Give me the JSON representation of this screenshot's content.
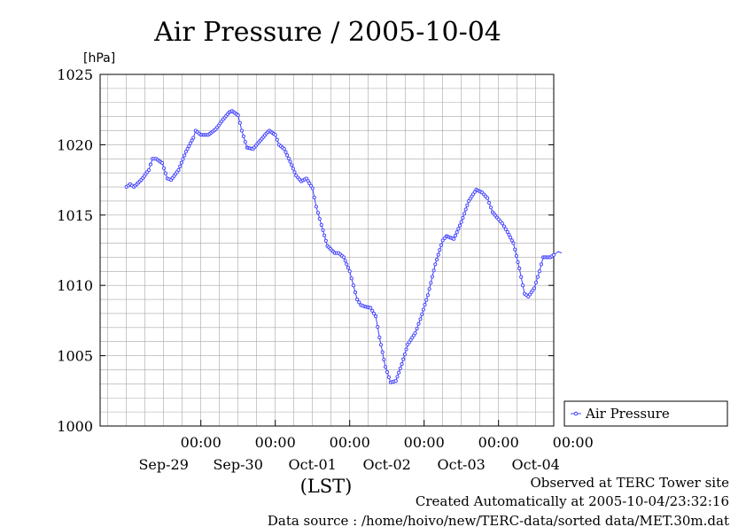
{
  "chart_data": {
    "type": "line",
    "title": "Air Pressure / 2005-10-04",
    "ylabel": "[hPa]",
    "xlabel": "(LST)",
    "ylim": [
      1000,
      1025
    ],
    "yticks": [
      1000,
      1005,
      1010,
      1015,
      1020,
      1025
    ],
    "xlim": [
      0,
      6
    ],
    "x_unit": "days since 2005-09-28 00:00 LST",
    "x_ticks": [
      {
        "x": 1,
        "time": "00:00",
        "date": "Sep-29"
      },
      {
        "x": 2,
        "time": "00:00",
        "date": "Sep-30"
      },
      {
        "x": 3,
        "time": "00:00",
        "date": "Oct-01"
      },
      {
        "x": 4,
        "time": "00:00",
        "date": "Oct-02"
      },
      {
        "x": 5,
        "time": "00:00",
        "date": "Oct-03"
      },
      {
        "x": 6,
        "time": "00:00",
        "date": "Oct-04"
      }
    ],
    "legend_position": "right-bottom",
    "series": [
      {
        "name": "Air Pressure",
        "color": "#4040ff",
        "marker": "circle-open",
        "points": [
          [
            0.0,
            1017.0
          ],
          [
            0.05,
            1017.2
          ],
          [
            0.1,
            1017.0
          ],
          [
            0.2,
            1017.5
          ],
          [
            0.3,
            1018.2
          ],
          [
            0.35,
            1019.0
          ],
          [
            0.4,
            1019.0
          ],
          [
            0.48,
            1018.7
          ],
          [
            0.55,
            1017.6
          ],
          [
            0.6,
            1017.5
          ],
          [
            0.7,
            1018.2
          ],
          [
            0.8,
            1019.5
          ],
          [
            0.9,
            1020.5
          ],
          [
            0.93,
            1021.0
          ],
          [
            1.0,
            1020.7
          ],
          [
            1.1,
            1020.7
          ],
          [
            1.2,
            1021.1
          ],
          [
            1.3,
            1021.8
          ],
          [
            1.38,
            1022.3
          ],
          [
            1.42,
            1022.4
          ],
          [
            1.5,
            1022.1
          ],
          [
            1.55,
            1021.0
          ],
          [
            1.62,
            1019.8
          ],
          [
            1.7,
            1019.7
          ],
          [
            1.8,
            1020.3
          ],
          [
            1.88,
            1020.8
          ],
          [
            1.92,
            1021.0
          ],
          [
            2.0,
            1020.7
          ],
          [
            2.05,
            1020.0
          ],
          [
            2.12,
            1019.7
          ],
          [
            2.2,
            1018.8
          ],
          [
            2.28,
            1017.8
          ],
          [
            2.35,
            1017.4
          ],
          [
            2.42,
            1017.6
          ],
          [
            2.5,
            1016.9
          ],
          [
            2.55,
            1015.6
          ],
          [
            2.62,
            1014.3
          ],
          [
            2.7,
            1012.8
          ],
          [
            2.8,
            1012.3
          ],
          [
            2.85,
            1012.3
          ],
          [
            2.92,
            1012.0
          ],
          [
            3.0,
            1011.0
          ],
          [
            3.05,
            1010.0
          ],
          [
            3.1,
            1009.0
          ],
          [
            3.15,
            1008.6
          ],
          [
            3.2,
            1008.5
          ],
          [
            3.28,
            1008.4
          ],
          [
            3.35,
            1007.8
          ],
          [
            3.4,
            1006.3
          ],
          [
            3.48,
            1004.2
          ],
          [
            3.55,
            1003.1
          ],
          [
            3.62,
            1003.2
          ],
          [
            3.7,
            1004.4
          ],
          [
            3.78,
            1005.8
          ],
          [
            3.88,
            1006.6
          ],
          [
            3.95,
            1007.6
          ],
          [
            4.05,
            1009.3
          ],
          [
            4.15,
            1011.5
          ],
          [
            4.25,
            1013.2
          ],
          [
            4.3,
            1013.5
          ],
          [
            4.4,
            1013.3
          ],
          [
            4.5,
            1014.5
          ],
          [
            4.6,
            1016.0
          ],
          [
            4.7,
            1016.8
          ],
          [
            4.78,
            1016.6
          ],
          [
            4.85,
            1016.2
          ],
          [
            4.92,
            1015.2
          ],
          [
            5.0,
            1014.7
          ],
          [
            5.05,
            1014.4
          ],
          [
            5.12,
            1013.8
          ],
          [
            5.2,
            1013.0
          ],
          [
            5.28,
            1011.2
          ],
          [
            5.35,
            1009.4
          ],
          [
            5.4,
            1009.2
          ],
          [
            5.48,
            1009.8
          ],
          [
            5.55,
            1011.0
          ],
          [
            5.6,
            1012.0
          ],
          [
            5.7,
            1012.0
          ],
          [
            5.8,
            1012.4
          ],
          [
            5.85,
            1012.3
          ]
        ]
      }
    ]
  },
  "footer": {
    "line1": "Observed at TERC Tower site",
    "line2": "Created Automatically at 2005-10-04/23:32:16",
    "line3": "Data source : /home/hoivo/new/TERC-data/sorted  data/MET.30m.dat"
  }
}
